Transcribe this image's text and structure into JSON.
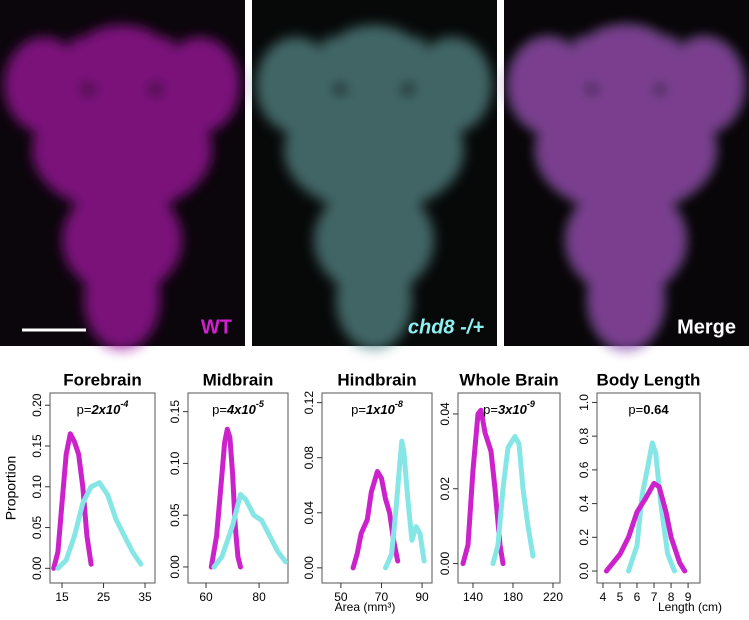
{
  "images": [
    {
      "label": "WT",
      "color": "#d020d0"
    },
    {
      "label": "chd8 -/+",
      "color": "#8ff0f0"
    },
    {
      "label": "Merge",
      "color": "#ffffff"
    }
  ],
  "chart_data": [
    {
      "type": "line",
      "title": "Forebrain",
      "y_label": "Proportion",
      "p_label": {
        "prefix": "p=",
        "base": "2x10",
        "exp": "-4"
      },
      "xlim": [
        12.1,
        37.4
      ],
      "xticks": [
        15,
        25,
        35
      ],
      "ylim": [
        -0.018,
        0.215
      ],
      "yticks": [
        {
          "value": 0,
          "label": "0.00"
        },
        0.05,
        {
          "value": 0.1,
          "label": "0.10"
        },
        0.15,
        {
          "value": 0.2,
          "label": "0.20"
        }
      ],
      "series": [
        {
          "color": "#cc22cc",
          "x": [
            13,
            14,
            15,
            16,
            17,
            18,
            19,
            20,
            21,
            22
          ],
          "values": [
            0,
            0.02,
            0.08,
            0.14,
            0.165,
            0.155,
            0.14,
            0.1,
            0.04,
            0.005
          ]
        },
        {
          "color": "#86e6e6",
          "x": [
            14,
            16,
            18,
            20,
            22,
            24,
            26,
            28,
            30,
            32,
            34
          ],
          "values": [
            0,
            0.01,
            0.04,
            0.08,
            0.1,
            0.105,
            0.09,
            0.06,
            0.04,
            0.02,
            0.005
          ]
        }
      ]
    },
    {
      "type": "line",
      "title": "Midbrain",
      "p_label": {
        "prefix": "p=",
        "base": "4x10",
        "exp": "-5"
      },
      "xlim": [
        53.2,
        90.9
      ],
      "xticks": [
        60,
        80
      ],
      "ylim": [
        -0.0155,
        0.168
      ],
      "yticks": [
        {
          "value": 0,
          "label": "0.00"
        },
        0.05,
        {
          "value": 0.1,
          "label": "0.10"
        },
        0.15
      ],
      "series": [
        {
          "color": "#cc22cc",
          "x": [
            62,
            64,
            66,
            67,
            68,
            69,
            70,
            71,
            72,
            73
          ],
          "values": [
            0,
            0.03,
            0.09,
            0.12,
            0.133,
            0.125,
            0.09,
            0.04,
            0.01,
            0
          ]
        },
        {
          "color": "#86e6e6",
          "x": [
            63,
            66,
            70,
            73,
            75,
            78,
            81,
            84,
            87,
            90
          ],
          "values": [
            0,
            0.01,
            0.04,
            0.07,
            0.065,
            0.05,
            0.045,
            0.03,
            0.015,
            0.005
          ]
        }
      ]
    },
    {
      "type": "line",
      "title": "Hindbrain",
      "x_label": "Area (mm³)",
      "p_label": {
        "prefix": "p=",
        "base": "1x10",
        "exp": "-8"
      },
      "xlim": [
        40.7,
        94.9
      ],
      "xticks": [
        50,
        70,
        90
      ],
      "ylim": [
        -0.011,
        0.127
      ],
      "yticks": [
        {
          "value": 0,
          "label": "0.00"
        },
        0.04,
        0.08,
        0.12
      ],
      "series": [
        {
          "color": "#cc22cc",
          "x": [
            56,
            58,
            60,
            63,
            65,
            68,
            70,
            72,
            74,
            76,
            78
          ],
          "values": [
            0,
            0.01,
            0.025,
            0.035,
            0.055,
            0.07,
            0.065,
            0.05,
            0.04,
            0.02,
            0.005
          ]
        },
        {
          "color": "#86e6e6",
          "x": [
            72,
            75,
            77,
            79,
            80,
            81,
            83,
            85,
            87,
            89,
            91
          ],
          "values": [
            0,
            0.01,
            0.04,
            0.075,
            0.092,
            0.085,
            0.05,
            0.02,
            0.03,
            0.025,
            0.005
          ]
        }
      ]
    },
    {
      "type": "line",
      "title": "Whole Brain",
      "p_label": {
        "prefix": "p=",
        "base": "3x10",
        "exp": "-9"
      },
      "xlim": [
        125,
        227
      ],
      "xticks": [
        140,
        180,
        220
      ],
      "ylim": [
        -0.0052,
        0.0456
      ],
      "yticks": [
        {
          "value": 0,
          "label": "0.00"
        },
        0.02,
        0.04
      ],
      "series": [
        {
          "color": "#cc22cc",
          "x": [
            130,
            135,
            140,
            145,
            148,
            152,
            158,
            162,
            167,
            170
          ],
          "values": [
            0,
            0.005,
            0.025,
            0.04,
            0.041,
            0.035,
            0.03,
            0.02,
            0.005,
            0
          ]
        },
        {
          "color": "#86e6e6",
          "x": [
            160,
            165,
            170,
            175,
            182,
            186,
            190,
            195,
            200
          ],
          "values": [
            0,
            0.005,
            0.02,
            0.031,
            0.034,
            0.032,
            0.02,
            0.01,
            0.002
          ]
        }
      ]
    },
    {
      "type": "line",
      "title": "Body Length",
      "x_label": "Length (cm)",
      "p_label": {
        "prefix": "p=",
        "base": "0.64"
      },
      "xlim": [
        3.65,
        9.7
      ],
      "xticks": [
        4,
        5,
        6,
        7,
        8,
        9
      ],
      "ylim": [
        -0.071,
        1.056
      ],
      "yticks": [
        {
          "value": 0,
          "label": "0.0"
        },
        0.2,
        0.4,
        0.6,
        0.8,
        {
          "value": 1,
          "label": "1.0"
        }
      ],
      "series": [
        {
          "color": "#86e6e6",
          "x": [
            5.5,
            6,
            6.3,
            6.6,
            6.9,
            7.1,
            7.4,
            7.8,
            8.2
          ],
          "values": [
            0,
            0.15,
            0.45,
            0.6,
            0.76,
            0.7,
            0.4,
            0.1,
            0
          ]
        },
        {
          "color": "#cc22cc",
          "x": [
            4.2,
            5,
            5.5,
            6,
            6.5,
            7,
            7.3,
            7.7,
            8,
            8.5,
            8.8
          ],
          "values": [
            0,
            0.1,
            0.2,
            0.35,
            0.43,
            0.52,
            0.5,
            0.35,
            0.2,
            0.05,
            0
          ]
        }
      ]
    }
  ]
}
